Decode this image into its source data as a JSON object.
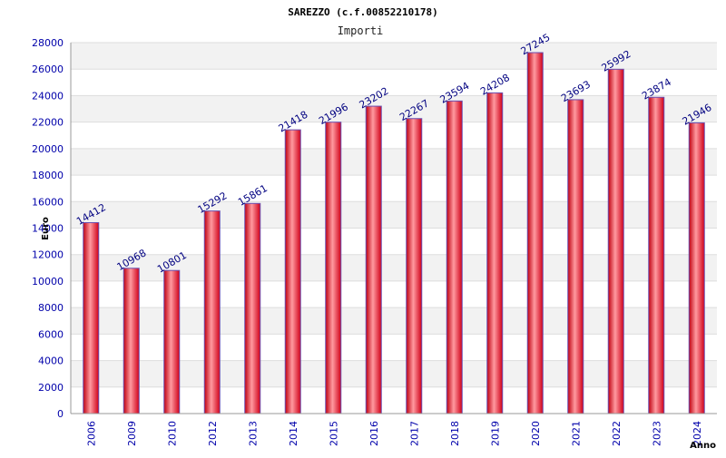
{
  "chart_data": {
    "type": "bar",
    "title": "SAREZZO (c.f.00852210178)",
    "subtitle": "Importi",
    "ylabel": "Euro",
    "xlabel": "Anno",
    "categories": [
      "2006",
      "2009",
      "2010",
      "2012",
      "2013",
      "2014",
      "2015",
      "2016",
      "2017",
      "2018",
      "2019",
      "2020",
      "2021",
      "2022",
      "2023",
      "2024"
    ],
    "values": [
      14412,
      10968,
      10801,
      15292,
      15861,
      21418,
      21996,
      23202,
      22267,
      23594,
      24208,
      27245,
      23693,
      25992,
      23874,
      21946
    ],
    "ylim": [
      0,
      28000
    ],
    "yticks": [
      0,
      2000,
      4000,
      6000,
      8000,
      10000,
      12000,
      14000,
      16000,
      18000,
      20000,
      22000,
      24000,
      26000,
      28000
    ],
    "grid": true,
    "bar_color": "#e02020",
    "bar_edge_color": "#6a4fb0",
    "alt_band_color": "#f2f2f2",
    "tick_color": "#0000aa",
    "label_color": "#000080"
  }
}
